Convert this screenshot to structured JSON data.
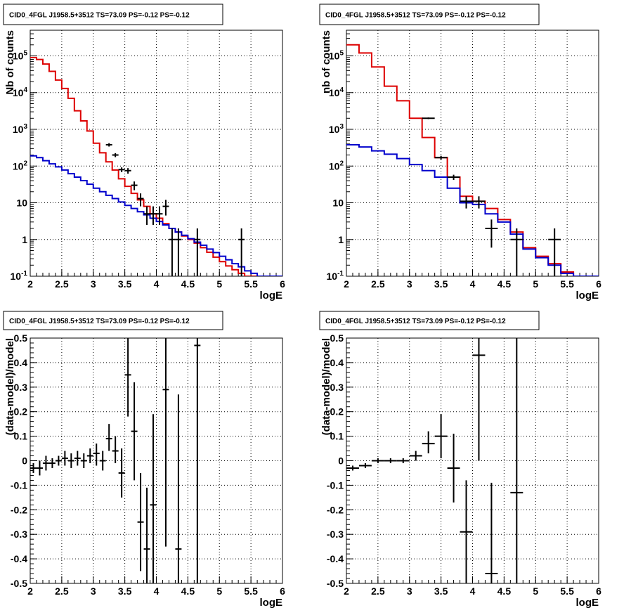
{
  "panels": [
    {
      "id": "top-left",
      "title": "CID0_4FGL J1958.5+3512 TS=73.09 PS=-0.12 PS=-0.12",
      "xlabel": "logE",
      "ylabel": "Nb of counts"
    },
    {
      "id": "top-right",
      "title": "CID0_4FGL J1958.5+3512 TS=73.09 PS=-0.12 PS=-0.12",
      "xlabel": "logE",
      "ylabel": "nb of counts"
    },
    {
      "id": "bottom-left",
      "title": "CID0_4FGL J1958.5+3512 TS=73.09 PS=-0.12 PS=-0.12",
      "xlabel": "logE",
      "ylabel": "(data-model)/model"
    },
    {
      "id": "bottom-right",
      "title": "CID0_4FGL J1958.5+3512 TS=73.09 PS=-0.12 PS=-0.12",
      "xlabel": "logE",
      "ylabel": "(data-model)/model"
    }
  ],
  "colors": {
    "total_model": "#dd0000",
    "source_model": "#0000cc",
    "data": "#000000",
    "grid": "#000000"
  },
  "chart_data": [
    {
      "type": "histogram",
      "scale": "log",
      "xlim": [
        2,
        6
      ],
      "ylim": [
        0.1,
        500000
      ],
      "x_ticks": [
        "2",
        "2.5",
        "3",
        "3.5",
        "4",
        "4.5",
        "5",
        "5.5",
        "6"
      ],
      "y_ticks": [
        "10^-1",
        "1",
        "10",
        "10^2",
        "10^3",
        "10^4",
        "10^5"
      ],
      "grid": true,
      "bin_edges": [
        2.0,
        2.1,
        2.2,
        2.3,
        2.4,
        2.5,
        2.6,
        2.7,
        2.8,
        2.9,
        3.0,
        3.1,
        3.2,
        3.3,
        3.4,
        3.5,
        3.6,
        3.7,
        3.8,
        3.9,
        4.0,
        4.1,
        4.2,
        4.3,
        4.4,
        4.5,
        4.6,
        4.7,
        4.8,
        4.9,
        5.0,
        5.1,
        5.2,
        5.3,
        5.4,
        5.5,
        5.6,
        5.7,
        5.8,
        5.9,
        6.0
      ],
      "series": [
        {
          "name": "",
          "role": "total_model",
          "values": [
            90000,
            80000,
            60000,
            38000,
            22000,
            13000,
            7000,
            3200,
            1700,
            900,
            420,
            230,
            130,
            78,
            45,
            28,
            18,
            12,
            8,
            5,
            3.8,
            2.7,
            2,
            1.6,
            1.25,
            1.0,
            0.8,
            0.6,
            0.45,
            0.33,
            0.25,
            0.19,
            0.15,
            0.12,
            0.1,
            0.1,
            0.1,
            0.1,
            0.1,
            0.1
          ]
        },
        {
          "name": "",
          "role": "source_model",
          "values": [
            190,
            170,
            140,
            115,
            95,
            78,
            62,
            50,
            40,
            32,
            25,
            20,
            16,
            13,
            10.5,
            8.5,
            7,
            5.7,
            4.7,
            3.8,
            3.1,
            2.5,
            2.0,
            1.6,
            1.3,
            1.05,
            0.85,
            0.7,
            0.55,
            0.44,
            0.35,
            0.28,
            0.22,
            0.18,
            0.14,
            0.12,
            0.1,
            0.1,
            0.1,
            0.1
          ]
        },
        {
          "name": "",
          "role": "data",
          "x": [
            3.25,
            3.35,
            3.45,
            3.55,
            3.65,
            3.75,
            3.85,
            3.95,
            4.05,
            4.15,
            4.25,
            4.35,
            4.65,
            5.35
          ],
          "y": [
            380,
            200,
            80,
            75,
            30,
            13,
            5,
            5,
            5,
            8,
            1,
            1,
            1,
            1
          ],
          "ylo": [
            340,
            175,
            68,
            62,
            22,
            8,
            2.5,
            2.5,
            2.5,
            4.5,
            0.1,
            0.1,
            0.1,
            0.1
          ],
          "yhi": [
            420,
            225,
            92,
            88,
            38,
            18,
            8,
            8,
            8,
            12,
            2,
            2,
            2,
            2
          ],
          "xerr": 0.05
        }
      ]
    },
    {
      "type": "histogram",
      "scale": "log",
      "xlim": [
        2,
        6
      ],
      "ylim": [
        0.1,
        500000
      ],
      "x_ticks": [
        "2",
        "2.5",
        "3",
        "3.5",
        "4",
        "4.5",
        "5",
        "5.5",
        "6"
      ],
      "y_ticks": [
        "10^-1",
        "1",
        "10",
        "10^2",
        "10^3",
        "10^4",
        "10^5"
      ],
      "grid": true,
      "bin_edges": [
        2.0,
        2.2,
        2.4,
        2.6,
        2.8,
        3.0,
        3.2,
        3.4,
        3.6,
        3.8,
        4.0,
        4.2,
        4.4,
        4.6,
        4.8,
        5.0,
        5.2,
        5.4,
        5.6,
        5.8,
        6.0
      ],
      "series": [
        {
          "name": "",
          "role": "total_model",
          "values": [
            200000,
            120000,
            50000,
            15000,
            6000,
            2000,
            600,
            170,
            50,
            15,
            11,
            7,
            3.5,
            1.6,
            0.6,
            0.35,
            0.22,
            0.13,
            0.1,
            0.1
          ]
        },
        {
          "name": "",
          "role": "source_model",
          "values": [
            380,
            330,
            260,
            210,
            160,
            110,
            75,
            50,
            25,
            10,
            9,
            5,
            3,
            1.4,
            0.55,
            0.32,
            0.2,
            0.12,
            0.1,
            0.1
          ]
        },
        {
          "name": "",
          "role": "data",
          "x": [
            3.3,
            3.5,
            3.7,
            3.9,
            4.1,
            4.3,
            4.7,
            5.3
          ],
          "y": [
            2000,
            170,
            50,
            11,
            11,
            2,
            1,
            1
          ],
          "ylo": [
            1900,
            150,
            42,
            7,
            7,
            0.6,
            0.1,
            0.1
          ],
          "yhi": [
            2100,
            190,
            58,
            15,
            15,
            3.5,
            2,
            2
          ],
          "xerr": 0.1
        }
      ]
    },
    {
      "type": "scatter",
      "scale": "linear",
      "xlim": [
        2,
        6
      ],
      "ylim": [
        -0.5,
        0.5
      ],
      "x_ticks": [
        "2",
        "2.5",
        "3",
        "3.5",
        "4",
        "4.5",
        "5",
        "5.5",
        "6"
      ],
      "y_ticks": [
        "-0.5",
        "-0.4",
        "-0.3",
        "-0.2",
        "-0.1",
        "0",
        "0.1",
        "0.2",
        "0.3",
        "0.4",
        "0.5"
      ],
      "grid": true,
      "series": [
        {
          "name": "",
          "role": "data",
          "x": [
            2.05,
            2.15,
            2.25,
            2.35,
            2.45,
            2.55,
            2.65,
            2.75,
            2.85,
            2.95,
            3.05,
            3.15,
            3.25,
            3.35,
            3.45,
            3.55,
            3.65,
            3.75,
            3.85,
            3.95,
            4.15,
            4.35,
            4.65
          ],
          "y": [
            -0.03,
            -0.03,
            -0.01,
            -0.01,
            0.0,
            0.01,
            0.0,
            0.01,
            0.0,
            0.02,
            0.03,
            0.0,
            0.09,
            0.04,
            -0.05,
            0.35,
            0.12,
            -0.25,
            -0.36,
            -0.18,
            0.29,
            -0.36,
            0.47
          ],
          "ylo": [
            -0.05,
            -0.06,
            -0.04,
            -0.03,
            -0.02,
            -0.02,
            -0.03,
            -0.02,
            -0.03,
            -0.01,
            -0.02,
            -0.04,
            0.04,
            -0.01,
            -0.15,
            0.18,
            -0.08,
            -0.45,
            -0.5,
            -0.5,
            -0.35,
            -0.5,
            -0.5
          ],
          "yhi": [
            -0.01,
            0.0,
            0.02,
            0.01,
            0.02,
            0.04,
            0.03,
            0.04,
            0.03,
            0.05,
            0.07,
            0.04,
            0.15,
            0.1,
            0.05,
            0.5,
            0.32,
            -0.05,
            -0.11,
            0.19,
            0.5,
            0.27,
            0.5
          ],
          "xerr": 0.05
        }
      ]
    },
    {
      "type": "scatter",
      "scale": "linear",
      "xlim": [
        2,
        6
      ],
      "ylim": [
        -0.5,
        0.5
      ],
      "x_ticks": [
        "2",
        "2.5",
        "3",
        "3.5",
        "4",
        "4.5",
        "5",
        "5.5",
        "6"
      ],
      "y_ticks": [
        "-0.5",
        "-0.4",
        "-0.3",
        "-0.2",
        "-0.1",
        "0",
        "0.1",
        "0.2",
        "0.3",
        "0.4",
        "0.5"
      ],
      "grid": true,
      "series": [
        {
          "name": "",
          "role": "data",
          "x": [
            2.1,
            2.3,
            2.5,
            2.7,
            2.9,
            3.1,
            3.3,
            3.5,
            3.7,
            3.9,
            4.1,
            4.3,
            4.7
          ],
          "y": [
            -0.03,
            -0.02,
            0.0,
            0.0,
            0.0,
            0.02,
            0.07,
            0.1,
            -0.03,
            -0.29,
            0.43,
            -0.46,
            -0.13
          ],
          "ylo": [
            -0.04,
            -0.03,
            -0.01,
            -0.01,
            -0.01,
            0.0,
            0.03,
            0.01,
            -0.17,
            -0.5,
            0.0,
            -0.5,
            -0.5
          ],
          "yhi": [
            -0.02,
            -0.01,
            0.01,
            0.01,
            0.01,
            0.04,
            0.12,
            0.19,
            0.11,
            -0.08,
            0.5,
            -0.09,
            0.5
          ],
          "xerr": 0.1
        }
      ]
    }
  ]
}
